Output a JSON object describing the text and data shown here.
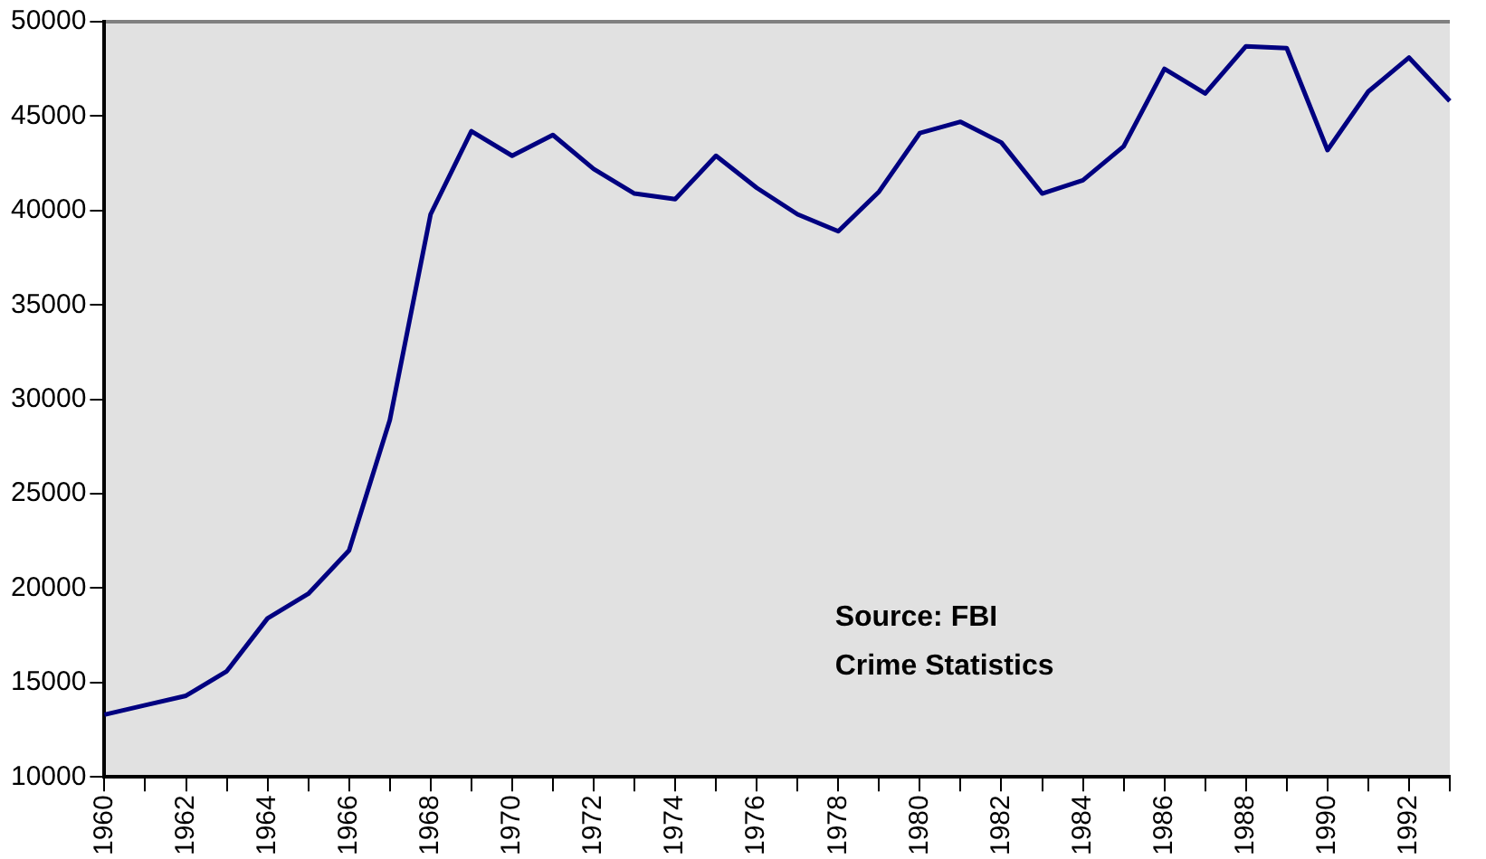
{
  "chart_data": {
    "type": "line",
    "categories": [
      "1960",
      null,
      "1962",
      null,
      "1964",
      null,
      "1966",
      null,
      "1968",
      null,
      "1970",
      null,
      "1972",
      null,
      "1974",
      null,
      "1976",
      null,
      "1978",
      null,
      "1980",
      null,
      "1982",
      null,
      "1984",
      null,
      "1986",
      null,
      "1988",
      null,
      "1990",
      null,
      "1992",
      null
    ],
    "series": [
      {
        "color": "#000080",
        "values": [
          13300,
          13800,
          14300,
          15600,
          18400,
          19700,
          22000,
          28900,
          39800,
          44200,
          42900,
          44000,
          42200,
          40900,
          40600,
          42900,
          41200,
          39800,
          38900,
          41000,
          44100,
          44700,
          43600,
          40900,
          41600,
          43400,
          47500,
          46200,
          48700,
          48600,
          43200,
          46300,
          48100,
          45800
        ]
      }
    ],
    "ylim": [
      10000,
      50000
    ],
    "yticks": [
      10000,
      15000,
      20000,
      25000,
      30000,
      35000,
      40000,
      45000,
      50000
    ],
    "grid": false,
    "legend": false,
    "marker": "none",
    "line_style": "solid",
    "annotations": [
      "Source: FBI\nCrime Statistics"
    ]
  }
}
